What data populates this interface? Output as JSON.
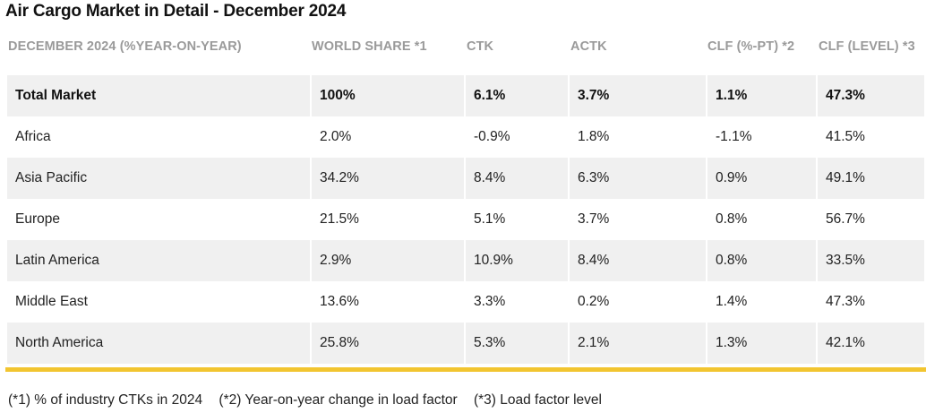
{
  "title": "Air Cargo Market in Detail - December 2024",
  "columns": [
    "DECEMBER 2024 (%YEAR-ON-YEAR)",
    "WORLD SHARE *1",
    "CTK",
    "ACTK",
    "CLF (%-PT) *2",
    "CLF (LEVEL) *3"
  ],
  "rows": [
    [
      "Total Market",
      "100%",
      "6.1%",
      "3.7%",
      "1.1%",
      "47.3%"
    ],
    [
      "Africa",
      "2.0%",
      "-0.9%",
      "1.8%",
      "-1.1%",
      "41.5%"
    ],
    [
      "Asia Pacific",
      "34.2%",
      "8.4%",
      "6.3%",
      "0.9%",
      "49.1%"
    ],
    [
      "Europe",
      "21.5%",
      "5.1%",
      "3.7%",
      "0.8%",
      "56.7%"
    ],
    [
      "Latin America",
      "2.9%",
      "10.9%",
      "8.4%",
      "0.8%",
      "33.5%"
    ],
    [
      "Middle East",
      "13.6%",
      "3.3%",
      "0.2%",
      "1.4%",
      "47.3%"
    ],
    [
      "North America",
      "25.8%",
      "5.3%",
      "2.1%",
      "1.3%",
      "42.1%"
    ]
  ],
  "footnotes": [
    "(*1) % of industry CTKs in 2024",
    "(*2) Year-on-year change in load factor",
    "(*3) Load factor level"
  ],
  "colors": {
    "accent": "#f2c530",
    "row_shade": "#f0f0f0",
    "header_text": "#9a9a9a"
  }
}
